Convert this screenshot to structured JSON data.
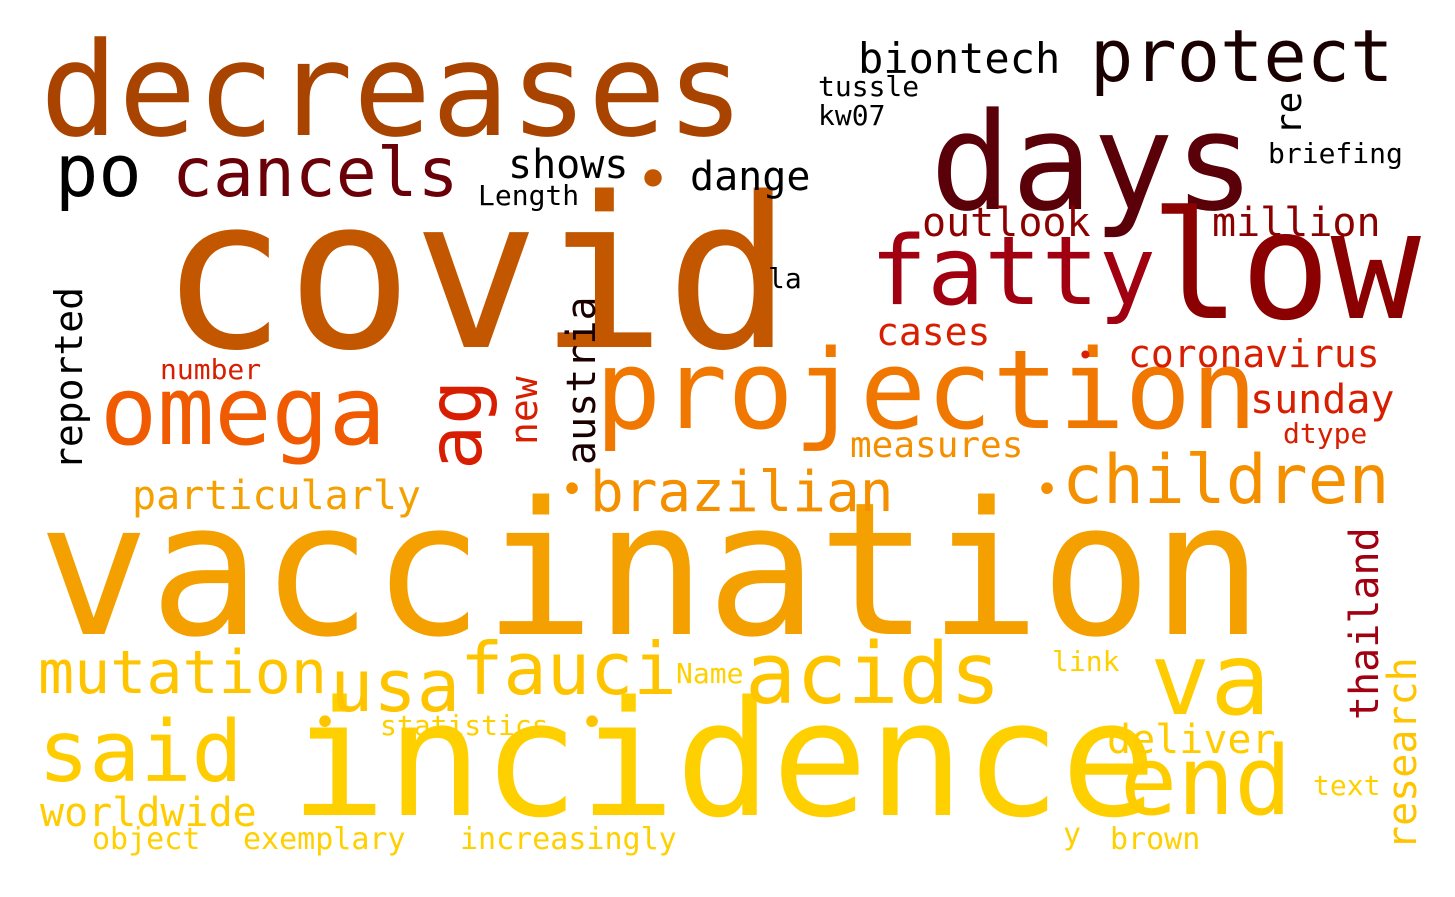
{
  "words": [
    {
      "text": "vaccination",
      "color": "#f4a000"
    },
    {
      "text": "covid",
      "color": "#c25700"
    },
    {
      "text": "incidence",
      "color": "#ffd000"
    },
    {
      "text": "decreases",
      "color": "#a84300"
    },
    {
      "text": "days",
      "color": "#5a0008"
    },
    {
      "text": "low",
      "color": "#8b0000"
    },
    {
      "text": "projection",
      "color": "#f07800"
    },
    {
      "text": "omega",
      "color": "#f05a00"
    },
    {
      "text": "fatty",
      "color": "#a00010"
    },
    {
      "text": "va",
      "color": "#ffcc00"
    },
    {
      "text": "end",
      "color": "#ffcc00"
    },
    {
      "text": "acids",
      "color": "#ffc400"
    },
    {
      "text": "said",
      "color": "#ffcc00"
    },
    {
      "text": "protect",
      "color": "#1a0000"
    },
    {
      "text": "cancels",
      "color": "#6a0008"
    },
    {
      "text": "po",
      "color": "#000000"
    },
    {
      "text": "fauci",
      "color": "#ffc400"
    },
    {
      "text": "usa",
      "color": "#ffc400"
    },
    {
      "text": "children",
      "color": "#f49000"
    },
    {
      "text": "brazilian",
      "color": "#f49000"
    },
    {
      "text": "mutation",
      "color": "#ffc400"
    },
    {
      "text": "ag",
      "color": "#d81e00"
    },
    {
      "text": "biontech",
      "color": "#000000"
    },
    {
      "text": "shows",
      "color": "#000000"
    },
    {
      "text": "dange",
      "color": "#000000"
    },
    {
      "text": "outlook",
      "color": "#8b0000"
    },
    {
      "text": "million",
      "color": "#8b0000"
    },
    {
      "text": "cases",
      "color": "#d81e00"
    },
    {
      "text": "coronavirus",
      "color": "#d81e00"
    },
    {
      "text": "sunday",
      "color": "#d81e00"
    },
    {
      "text": "particularly",
      "color": "#f4a000"
    },
    {
      "text": "measures",
      "color": "#f49000"
    },
    {
      "text": "deliver",
      "color": "#ffcc00"
    },
    {
      "text": "worldwide",
      "color": "#ffcc00"
    },
    {
      "text": "statistics",
      "color": "#ffd000"
    },
    {
      "text": "increasingly",
      "color": "#ffd000"
    },
    {
      "text": "exemplary",
      "color": "#ffd000"
    },
    {
      "text": "object",
      "color": "#ffd000"
    },
    {
      "text": "brown",
      "color": "#ffd000"
    },
    {
      "text": "text",
      "color": "#ffd000"
    },
    {
      "text": "link",
      "color": "#ffd000"
    },
    {
      "text": "Name",
      "color": "#ffd000"
    },
    {
      "text": "y",
      "color": "#ffd000"
    },
    {
      "text": "tussle",
      "color": "#000000"
    },
    {
      "text": "kw07",
      "color": "#000000"
    },
    {
      "text": "briefing",
      "color": "#000000"
    },
    {
      "text": "Length",
      "color": "#000000"
    },
    {
      "text": "la",
      "color": "#000000"
    },
    {
      "text": "number",
      "color": "#d81e00"
    },
    {
      "text": "dtype",
      "color": "#d81e00"
    },
    {
      "text": "re",
      "color": "#000000"
    },
    {
      "text": "reported",
      "color": "#000000"
    },
    {
      "text": "austria",
      "color": "#1a0000"
    },
    {
      "text": "new",
      "color": "#d81e00"
    },
    {
      "text": "thailand",
      "color": "#a00010"
    },
    {
      "text": "research",
      "color": "#ffc400"
    },
    {
      "text": "•",
      "color": "#c25700"
    },
    {
      "text": "•",
      "color": "#f49000"
    },
    {
      "text": "•",
      "color": "#f49000"
    },
    {
      "text": "•",
      "color": "#d81e00"
    },
    {
      "text": "•",
      "color": "#ffc400"
    },
    {
      "text": "•",
      "color": "#ffc400"
    }
  ]
}
